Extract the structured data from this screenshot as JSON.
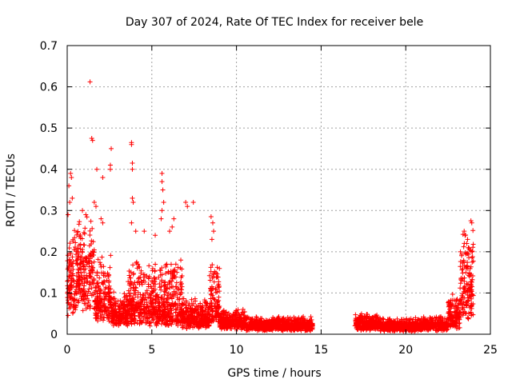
{
  "chart_data": {
    "type": "scatter",
    "title": "Day 307 of 2024, Rate Of TEC Index for receiver bele",
    "xlabel": "GPS time / hours",
    "ylabel": "ROTI / TECUs",
    "xlim": [
      0,
      25
    ],
    "ylim": [
      0,
      0.7
    ],
    "x_ticks": [
      "0",
      "5",
      "10",
      "15",
      "20",
      "25"
    ],
    "y_ticks": [
      "0",
      "0.1",
      "0.2",
      "0.3",
      "0.4",
      "0.5",
      "0.6",
      "0.7"
    ],
    "grid": true,
    "marker": "plus",
    "color": "#ff0000",
    "segments": [
      {
        "x0": 0.0,
        "x1": 0.5,
        "base": 0.09,
        "spread": 0.17
      },
      {
        "x0": 0.5,
        "x1": 1.6,
        "base": 0.12,
        "spread": 0.14
      },
      {
        "x0": 1.6,
        "x1": 2.6,
        "base": 0.06,
        "spread": 0.12
      },
      {
        "x0": 2.6,
        "x1": 3.6,
        "base": 0.04,
        "spread": 0.05
      },
      {
        "x0": 3.6,
        "x1": 4.6,
        "base": 0.05,
        "spread": 0.12
      },
      {
        "x0": 4.6,
        "x1": 5.8,
        "base": 0.04,
        "spread": 0.12
      },
      {
        "x0": 5.8,
        "x1": 6.8,
        "base": 0.04,
        "spread": 0.13
      },
      {
        "x0": 6.8,
        "x1": 8.4,
        "base": 0.03,
        "spread": 0.05
      },
      {
        "x0": 8.4,
        "x1": 9.0,
        "base": 0.05,
        "spread": 0.12
      },
      {
        "x0": 9.0,
        "x1": 10.5,
        "base": 0.025,
        "spread": 0.03
      },
      {
        "x0": 10.5,
        "x1": 12.5,
        "base": 0.018,
        "spread": 0.02
      },
      {
        "x0": 12.5,
        "x1": 14.5,
        "base": 0.018,
        "spread": 0.02
      },
      {
        "x0": 17.0,
        "x1": 18.5,
        "base": 0.02,
        "spread": 0.025
      },
      {
        "x0": 18.5,
        "x1": 21.0,
        "base": 0.015,
        "spread": 0.02
      },
      {
        "x0": 21.0,
        "x1": 22.5,
        "base": 0.018,
        "spread": 0.02
      },
      {
        "x0": 22.5,
        "x1": 23.2,
        "base": 0.03,
        "spread": 0.06
      },
      {
        "x0": 23.2,
        "x1": 24.0,
        "base": 0.08,
        "spread": 0.16
      }
    ],
    "peaks": [
      {
        "x": 1.35,
        "y": 0.612
      },
      {
        "x": 1.45,
        "y": 0.475
      },
      {
        "x": 1.5,
        "y": 0.47
      },
      {
        "x": 2.6,
        "y": 0.45
      },
      {
        "x": 1.75,
        "y": 0.4
      },
      {
        "x": 2.1,
        "y": 0.38
      },
      {
        "x": 2.55,
        "y": 0.41
      },
      {
        "x": 2.55,
        "y": 0.4
      },
      {
        "x": 3.8,
        "y": 0.465
      },
      {
        "x": 3.8,
        "y": 0.46
      },
      {
        "x": 3.85,
        "y": 0.415
      },
      {
        "x": 3.85,
        "y": 0.4
      },
      {
        "x": 3.85,
        "y": 0.33
      },
      {
        "x": 3.9,
        "y": 0.32
      },
      {
        "x": 3.8,
        "y": 0.27
      },
      {
        "x": 5.6,
        "y": 0.39
      },
      {
        "x": 5.6,
        "y": 0.37
      },
      {
        "x": 5.65,
        "y": 0.35
      },
      {
        "x": 5.7,
        "y": 0.32
      },
      {
        "x": 5.6,
        "y": 0.3
      },
      {
        "x": 5.55,
        "y": 0.28
      },
      {
        "x": 7.0,
        "y": 0.32
      },
      {
        "x": 7.1,
        "y": 0.31
      },
      {
        "x": 6.3,
        "y": 0.28
      },
      {
        "x": 6.2,
        "y": 0.26
      },
      {
        "x": 7.45,
        "y": 0.32
      },
      {
        "x": 8.5,
        "y": 0.285
      },
      {
        "x": 8.6,
        "y": 0.27
      },
      {
        "x": 8.65,
        "y": 0.25
      },
      {
        "x": 8.55,
        "y": 0.23
      },
      {
        "x": 0.1,
        "y": 0.36
      },
      {
        "x": 0.2,
        "y": 0.39
      },
      {
        "x": 0.25,
        "y": 0.38
      },
      {
        "x": 0.3,
        "y": 0.33
      },
      {
        "x": 0.15,
        "y": 0.32
      },
      {
        "x": 0.05,
        "y": 0.29
      },
      {
        "x": 1.6,
        "y": 0.32
      },
      {
        "x": 1.7,
        "y": 0.31
      },
      {
        "x": 0.9,
        "y": 0.3
      },
      {
        "x": 1.1,
        "y": 0.29
      },
      {
        "x": 2.0,
        "y": 0.28
      },
      {
        "x": 2.1,
        "y": 0.27
      },
      {
        "x": 4.05,
        "y": 0.25
      },
      {
        "x": 4.55,
        "y": 0.25
      },
      {
        "x": 5.2,
        "y": 0.24
      },
      {
        "x": 6.05,
        "y": 0.25
      },
      {
        "x": 23.45,
        "y": 0.25
      },
      {
        "x": 23.5,
        "y": 0.24
      },
      {
        "x": 23.85,
        "y": 0.275
      },
      {
        "x": 23.9,
        "y": 0.27
      },
      {
        "x": 23.6,
        "y": 0.22
      },
      {
        "x": 23.7,
        "y": 0.21
      }
    ]
  }
}
